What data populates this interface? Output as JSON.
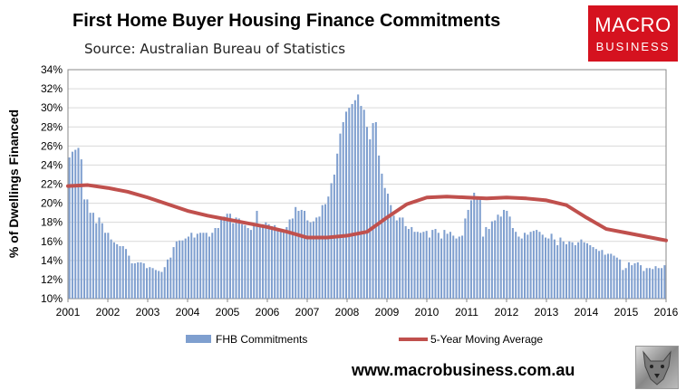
{
  "header": {
    "title": "First Home Buyer Housing Finance Commitments",
    "subtitle": "Source: Australian Bureau of Statistics"
  },
  "logo": {
    "line1": "MACRO",
    "line2": "BUSINESS",
    "color": "#d5121f"
  },
  "footer": {
    "url": "www.macrobusiness.com.au"
  },
  "wolf_icon": "wolf-head-icon",
  "chart_data": {
    "type": "bar",
    "ylabel": "% of Dwellings Financed",
    "ylim": [
      10,
      34
    ],
    "yticks": [
      "10%",
      "12%",
      "14%",
      "16%",
      "18%",
      "20%",
      "22%",
      "24%",
      "26%",
      "28%",
      "30%",
      "32%",
      "34%"
    ],
    "xticks": [
      "2001",
      "2002",
      "2003",
      "2004",
      "2005",
      "2006",
      "2007",
      "2008",
      "2009",
      "2010",
      "2011",
      "2012",
      "2013",
      "2014",
      "2015",
      "2016"
    ],
    "grid": true,
    "legend_position": "bottom",
    "bar_color": "#7f9fcf",
    "line_color": "#c0504d",
    "series": [
      {
        "name": "FHB Commitments",
        "type": "bar",
        "values": [
          24.8,
          25.4,
          25.6,
          25.8,
          24.6,
          20.4,
          20.4,
          19.0,
          19.0,
          17.9,
          18.5,
          17.9,
          16.9,
          16.9,
          16.2,
          15.9,
          15.7,
          15.5,
          15.5,
          15.2,
          14.5,
          13.7,
          13.7,
          13.8,
          13.8,
          13.7,
          13.2,
          13.3,
          13.2,
          13.0,
          12.9,
          12.8,
          13.3,
          14.1,
          14.3,
          15.4,
          16.0,
          16.1,
          16.1,
          16.3,
          16.5,
          16.9,
          16.4,
          16.8,
          16.9,
          16.9,
          16.9,
          16.5,
          16.9,
          17.4,
          17.4,
          18.3,
          18.6,
          18.9,
          18.9,
          17.9,
          18.5,
          18.4,
          17.8,
          17.7,
          17.4,
          17.2,
          17.7,
          19.2,
          17.5,
          17.8,
          18.0,
          17.8,
          17.6,
          17.7,
          17.4,
          17.2,
          17.1,
          17.5,
          18.3,
          18.4,
          19.6,
          19.2,
          19.3,
          19.2,
          18.2,
          18.0,
          18.1,
          18.5,
          18.6,
          19.8,
          19.9,
          20.7,
          22.1,
          23.0,
          25.2,
          27.3,
          28.5,
          29.6,
          30.0,
          30.4,
          30.8,
          31.4,
          30.2,
          29.8,
          28.0,
          26.7,
          28.4,
          28.5,
          25.0,
          23.1,
          21.6,
          21.0,
          19.8,
          18.7,
          18.2,
          18.5,
          18.5,
          17.6,
          17.3,
          17.5,
          17.0,
          17.0,
          16.9,
          17.0,
          17.1,
          16.4,
          17.2,
          17.3,
          16.9,
          16.3,
          17.2,
          16.8,
          17.0,
          16.6,
          16.3,
          16.5,
          16.6,
          18.4,
          19.3,
          20.3,
          21.1,
          20.7,
          20.6,
          16.5,
          17.5,
          17.3,
          18.1,
          18.2,
          18.8,
          18.6,
          19.3,
          19.2,
          18.6,
          17.4,
          17.0,
          16.5,
          16.3,
          16.9,
          16.7,
          17.0,
          17.1,
          17.2,
          17.0,
          16.7,
          16.4,
          16.3,
          16.8,
          16.2,
          15.6,
          16.4,
          16.0,
          15.7,
          16.0,
          15.9,
          15.6,
          15.9,
          16.2,
          15.9,
          15.8,
          15.6,
          15.4,
          15.2,
          15.0,
          15.1,
          14.6,
          14.7,
          14.7,
          14.5,
          14.3,
          14.1,
          13.0,
          13.2,
          13.8,
          13.5,
          13.7,
          13.8,
          13.5,
          12.9,
          13.2,
          13.2,
          13.1,
          13.4,
          13.2,
          13.2,
          13.5
        ]
      },
      {
        "name": "5-Year Moving Average",
        "type": "line",
        "x": [
          2001.0,
          2001.5,
          2002.0,
          2002.5,
          2003.0,
          2003.5,
          2004.0,
          2004.5,
          2005.0,
          2005.5,
          2006.0,
          2006.5,
          2007.0,
          2007.5,
          2008.0,
          2008.5,
          2009.0,
          2009.5,
          2010.0,
          2010.5,
          2011.0,
          2011.5,
          2012.0,
          2012.5,
          2013.0,
          2013.5,
          2014.0,
          2014.5,
          2015.0,
          2015.5,
          2016.0
        ],
        "values": [
          21.8,
          21.9,
          21.6,
          21.2,
          20.6,
          19.9,
          19.2,
          18.7,
          18.3,
          17.9,
          17.5,
          17.0,
          16.4,
          16.4,
          16.6,
          17.0,
          18.5,
          19.9,
          20.6,
          20.7,
          20.6,
          20.5,
          20.6,
          20.5,
          20.3,
          19.8,
          18.5,
          17.3,
          16.9,
          16.5,
          16.1
        ]
      }
    ]
  }
}
